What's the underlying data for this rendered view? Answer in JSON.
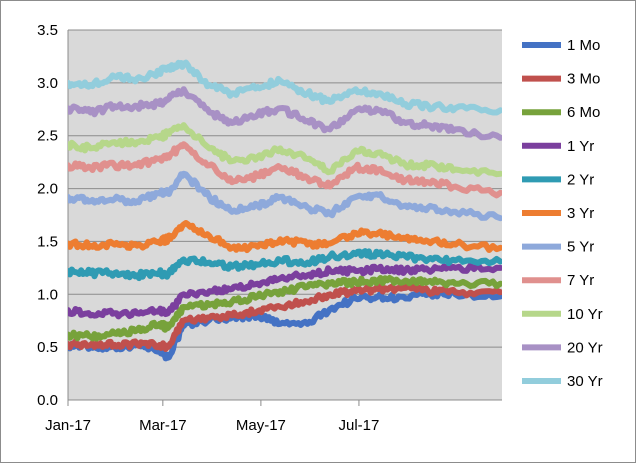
{
  "chart_data": {
    "type": "line",
    "title": "",
    "xlabel": "",
    "ylabel": "",
    "ylim": [
      0,
      3.5
    ],
    "yticks": [
      "0.0",
      "0.5",
      "1.0",
      "1.5",
      "2.0",
      "2.5",
      "3.0",
      "3.5"
    ],
    "xlim": [
      "2017-01-03",
      "2017-09-30"
    ],
    "xticks": [
      {
        "date": "2017-01-03",
        "label": "Jan-17"
      },
      {
        "date": "2017-03-03",
        "label": "Mar-17"
      },
      {
        "date": "2017-05-03",
        "label": "May-17"
      },
      {
        "date": "2017-07-03",
        "label": "Jul-17"
      }
    ],
    "grid": "horizontal",
    "legend_position": "right",
    "plot_background": "#d9d9d9",
    "x": [
      "2017-01-03",
      "2017-01-17",
      "2017-02-01",
      "2017-02-15",
      "2017-03-01",
      "2017-03-06",
      "2017-03-16",
      "2017-04-01",
      "2017-04-15",
      "2017-05-01",
      "2017-05-15",
      "2017-06-01",
      "2017-06-15",
      "2017-07-01",
      "2017-07-15",
      "2017-08-01",
      "2017-08-15",
      "2017-09-01",
      "2017-09-29"
    ],
    "series": [
      {
        "name": "1 Mo",
        "color": "#4472c4",
        "values": [
          0.52,
          0.5,
          0.5,
          0.52,
          0.48,
          0.4,
          0.7,
          0.76,
          0.78,
          0.8,
          0.72,
          0.72,
          0.86,
          0.96,
          0.98,
          0.96,
          1.0,
          1.0,
          0.98
        ]
      },
      {
        "name": "3 Mo",
        "color": "#c0504d",
        "values": [
          0.53,
          0.52,
          0.52,
          0.53,
          0.52,
          0.5,
          0.75,
          0.78,
          0.8,
          0.84,
          0.88,
          0.93,
          1.0,
          1.03,
          1.05,
          1.06,
          1.03,
          1.02,
          1.02
        ]
      },
      {
        "name": "6 Mo",
        "color": "#77a23b",
        "values": [
          0.62,
          0.6,
          0.63,
          0.66,
          0.72,
          0.68,
          0.88,
          0.9,
          0.93,
          0.98,
          1.03,
          1.07,
          1.1,
          1.12,
          1.13,
          1.13,
          1.12,
          1.1,
          1.1
        ]
      },
      {
        "name": "1 Yr",
        "color": "#7b3f9e",
        "values": [
          0.85,
          0.8,
          0.82,
          0.82,
          0.85,
          0.82,
          1.0,
          1.03,
          1.05,
          1.1,
          1.15,
          1.18,
          1.22,
          1.22,
          1.24,
          1.23,
          1.23,
          1.25,
          1.25
        ]
      },
      {
        "name": "2 Yr",
        "color": "#2f9bb3",
        "values": [
          1.22,
          1.2,
          1.2,
          1.18,
          1.2,
          1.18,
          1.33,
          1.3,
          1.26,
          1.28,
          1.32,
          1.3,
          1.36,
          1.38,
          1.38,
          1.36,
          1.33,
          1.32,
          1.31
        ]
      },
      {
        "name": "3 Yr",
        "color": "#ed7d31",
        "values": [
          1.48,
          1.46,
          1.47,
          1.46,
          1.5,
          1.52,
          1.66,
          1.55,
          1.44,
          1.45,
          1.52,
          1.47,
          1.48,
          1.58,
          1.58,
          1.53,
          1.5,
          1.47,
          1.44
        ]
      },
      {
        "name": "5 Yr",
        "color": "#8ea9db",
        "values": [
          1.92,
          1.88,
          1.9,
          1.88,
          1.96,
          1.96,
          2.14,
          1.92,
          1.78,
          1.84,
          1.92,
          1.82,
          1.76,
          1.92,
          1.94,
          1.84,
          1.82,
          1.78,
          1.72
        ]
      },
      {
        "name": "7 Yr",
        "color": "#e0908e",
        "values": [
          2.22,
          2.2,
          2.22,
          2.22,
          2.28,
          2.3,
          2.42,
          2.22,
          2.06,
          2.12,
          2.2,
          2.1,
          2.02,
          2.2,
          2.18,
          2.08,
          2.06,
          2.02,
          1.96
        ]
      },
      {
        "name": "10 Yr",
        "color": "#b6d78a",
        "values": [
          2.42,
          2.38,
          2.44,
          2.44,
          2.48,
          2.52,
          2.6,
          2.38,
          2.26,
          2.3,
          2.38,
          2.28,
          2.16,
          2.36,
          2.34,
          2.22,
          2.22,
          2.18,
          2.14
        ]
      },
      {
        "name": "20 Yr",
        "color": "#a891c5",
        "values": [
          2.76,
          2.72,
          2.78,
          2.78,
          2.8,
          2.84,
          2.94,
          2.72,
          2.62,
          2.7,
          2.76,
          2.64,
          2.56,
          2.74,
          2.74,
          2.62,
          2.6,
          2.56,
          2.48
        ]
      },
      {
        "name": "30 Yr",
        "color": "#92cddc",
        "values": [
          3.0,
          2.98,
          3.06,
          3.04,
          3.1,
          3.14,
          3.18,
          2.98,
          2.9,
          2.96,
          3.02,
          2.9,
          2.82,
          2.94,
          2.9,
          2.8,
          2.78,
          2.76,
          2.74
        ]
      }
    ]
  }
}
